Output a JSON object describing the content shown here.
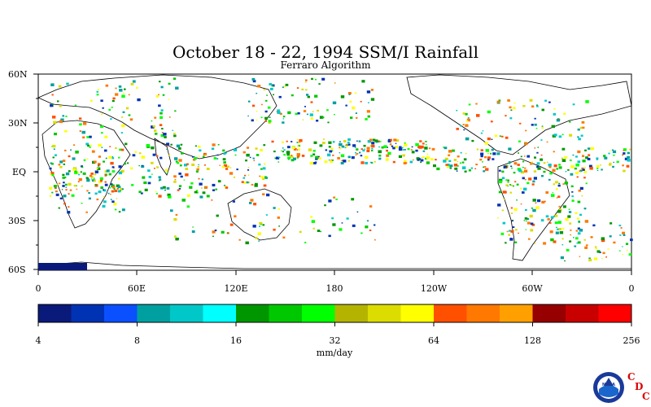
{
  "title": "October 18 - 22, 1994 SSM/I Rainfall",
  "subtitle": "Ferraro Algorithm",
  "map": {
    "lat_ticks": [
      "60N",
      "30N",
      "EQ",
      "30S",
      "60S"
    ],
    "lon_ticks": [
      "0",
      "60E",
      "120E",
      "180",
      "120W",
      "60W",
      "0"
    ]
  },
  "colorbar": {
    "colors": [
      "#0a1a7a",
      "#0032b4",
      "#0a50ff",
      "#00a0a0",
      "#00c8c8",
      "#00ffff",
      "#009600",
      "#00c800",
      "#00ff00",
      "#b4b400",
      "#dcdc00",
      "#ffff00",
      "#ff5000",
      "#ff7800",
      "#ffa000",
      "#960000",
      "#c80000",
      "#ff0000"
    ],
    "tick_labels": [
      "4",
      "8",
      "16",
      "32",
      "64",
      "128",
      "256"
    ],
    "unit": "mm/day"
  },
  "logo": {
    "noaa_text": "NOAA",
    "cdc_letters": [
      "C",
      "D",
      "C"
    ]
  }
}
